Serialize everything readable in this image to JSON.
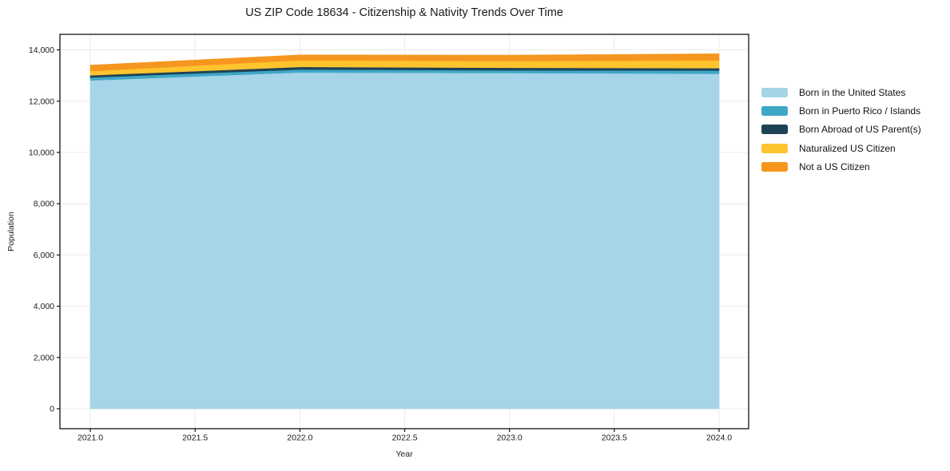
{
  "figure": {
    "title": "US ZIP Code 18634 - Citizenship & Nativity Trends Over Time"
  },
  "axes": {
    "xlabel": "Year",
    "ylabel": "Population",
    "x_ticks": [
      "2021.0",
      "2021.5",
      "2022.0",
      "2022.5",
      "2023.0",
      "2023.5",
      "2024.0"
    ],
    "y_ticks": [
      "0",
      "2,000",
      "4,000",
      "6,000",
      "8,000",
      "10,000",
      "12,000",
      "14,000"
    ]
  },
  "chart_data": {
    "type": "area",
    "stacked": true,
    "title": "US ZIP Code 18634 - Citizenship & Nativity Trends Over Time",
    "xlabel": "Year",
    "ylabel": "Population",
    "x": [
      2021,
      2022,
      2023,
      2024
    ],
    "xlim": [
      2020.855,
      2024.14
    ],
    "ylim": [
      -780,
      14610
    ],
    "y_tick_range": [
      0,
      14000
    ],
    "y_tick_step": 2000,
    "grid": true,
    "legend_position": "right",
    "series": [
      {
        "name": "Born in the United States",
        "color": "#a6d4e8",
        "values": [
          12810,
          13120,
          13100,
          13070
        ]
      },
      {
        "name": "Born in Puerto Rico / Islands",
        "color": "#3fa7c6",
        "values": [
          115,
          115,
          105,
          125
        ]
      },
      {
        "name": "Born Abroad of US Parent(s)",
        "color": "#1e4356",
        "values": [
          85,
          100,
          100,
          95
        ]
      },
      {
        "name": "Naturalized US Citizen",
        "color": "#fdc42e",
        "values": [
          165,
          260,
          260,
          300
        ]
      },
      {
        "name": "Not a US Citizen",
        "color": "#f6961e",
        "values": [
          230,
          210,
          230,
          260
        ]
      }
    ],
    "totals_by_year": [
      13405,
      13805,
      13795,
      13850
    ]
  }
}
